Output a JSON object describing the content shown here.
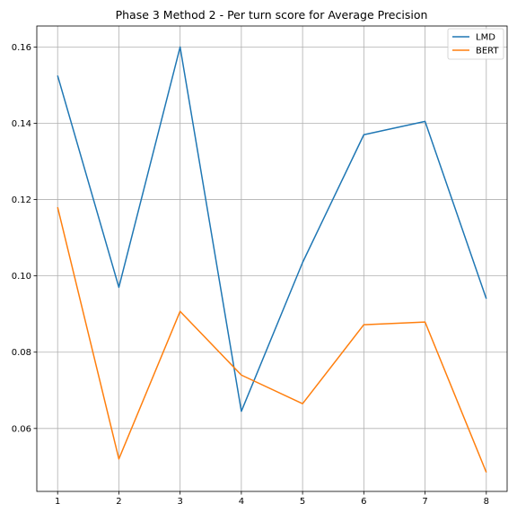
{
  "chart_data": {
    "type": "line",
    "title": "Phase 3 Method 2 - Per turn score for Average Precision",
    "xlabel": "",
    "ylabel": "",
    "x": [
      1,
      2,
      3,
      4,
      5,
      6,
      7,
      8
    ],
    "xlim": [
      0.66,
      8.34
    ],
    "ylim": [
      0.0435,
      0.1655
    ],
    "xticks": [
      "1",
      "2",
      "3",
      "4",
      "5",
      "6",
      "7",
      "8"
    ],
    "yticks": [
      "0.06",
      "0.08",
      "0.10",
      "0.12",
      "0.14",
      "0.16"
    ],
    "ytick_values": [
      0.06,
      0.08,
      0.1,
      0.12,
      0.14,
      0.16
    ],
    "grid": true,
    "legend_position": "top-right",
    "series": [
      {
        "name": "LMD",
        "color": "#1f77b4",
        "values": [
          0.1525,
          0.097,
          0.16,
          0.0645,
          0.1035,
          0.137,
          0.1405,
          0.094
        ]
      },
      {
        "name": "BERT",
        "color": "#ff7f0e",
        "values": [
          0.118,
          0.052,
          0.0907,
          0.074,
          0.0665,
          0.0872,
          0.0879,
          0.0485
        ]
      }
    ]
  }
}
